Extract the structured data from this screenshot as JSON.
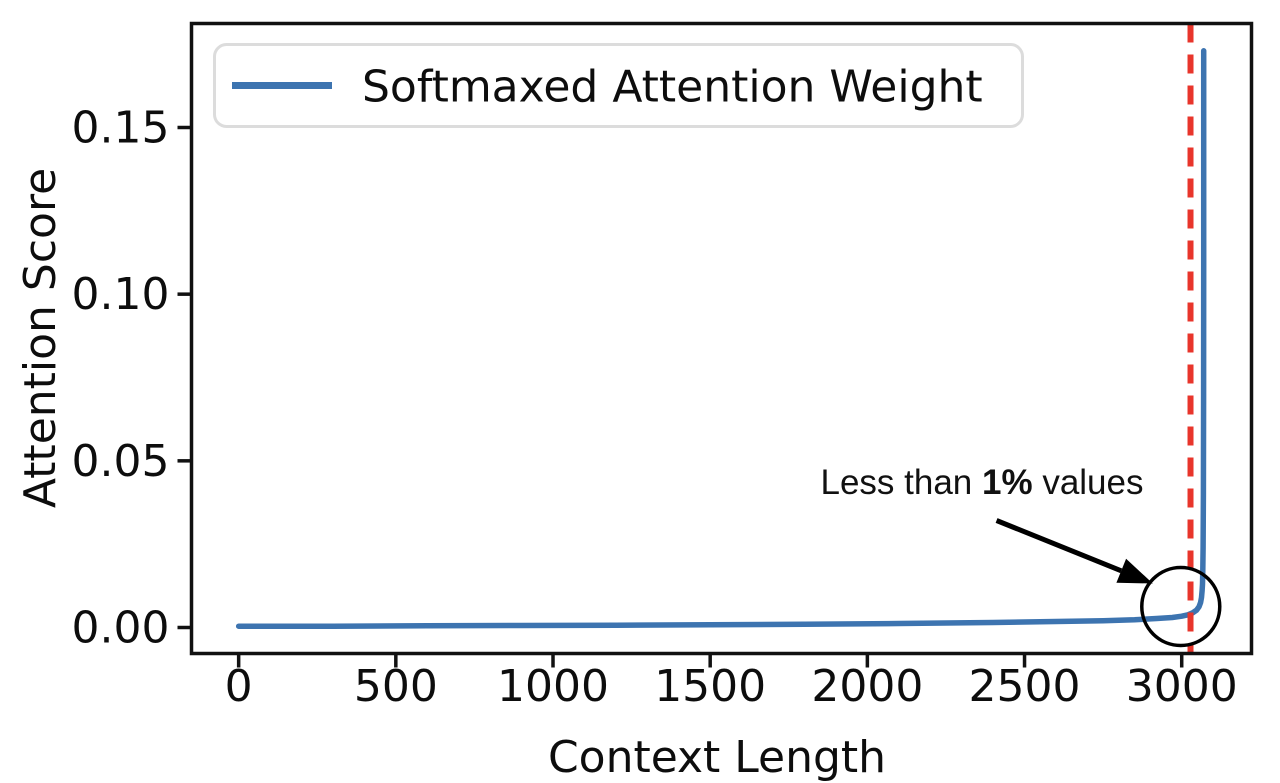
{
  "figure": {
    "background": "#ffffff"
  },
  "colors": {
    "line_blue": "#3d74b0",
    "vline_red": "#e8352b",
    "spine": "#111111",
    "legend_border": "#dcdcdc",
    "annotation_black": "#000000"
  },
  "chart_data": {
    "type": "line",
    "title": "",
    "xlabel": "Context Length",
    "ylabel": "Attention Score",
    "xlim": [
      -150,
      3222
    ],
    "ylim": [
      -0.0078,
      0.1812
    ],
    "grid": false,
    "x_ticks": [
      {
        "value": 0,
        "label": "0"
      },
      {
        "value": 500,
        "label": "500"
      },
      {
        "value": 1000,
        "label": "1000"
      },
      {
        "value": 1500,
        "label": "1500"
      },
      {
        "value": 2000,
        "label": "2000"
      },
      {
        "value": 2500,
        "label": "2500"
      },
      {
        "value": 3000,
        "label": "3000"
      }
    ],
    "y_ticks": [
      {
        "value": 0.0,
        "label": "0.00"
      },
      {
        "value": 0.05,
        "label": "0.05"
      },
      {
        "value": 0.1,
        "label": "0.10"
      },
      {
        "value": 0.15,
        "label": "0.15"
      }
    ],
    "legend": {
      "position": "upper left",
      "entries": [
        {
          "label": "Softmaxed Attention Weight",
          "color": "#3d74b0"
        }
      ]
    },
    "series": [
      {
        "name": "Softmaxed Attention Weight",
        "color": "#3d74b0",
        "points": [
          [
            0,
            0.0004
          ],
          [
            300,
            0.0004
          ],
          [
            600,
            0.0005
          ],
          [
            900,
            0.0006
          ],
          [
            1200,
            0.0007
          ],
          [
            1500,
            0.0008
          ],
          [
            1800,
            0.001
          ],
          [
            2100,
            0.0012
          ],
          [
            2400,
            0.0015
          ],
          [
            2600,
            0.0018
          ],
          [
            2750,
            0.002
          ],
          [
            2850,
            0.0023
          ],
          [
            2920,
            0.0027
          ],
          [
            2970,
            0.003
          ],
          [
            3000,
            0.0034
          ],
          [
            3020,
            0.0038
          ],
          [
            3035,
            0.0044
          ],
          [
            3047,
            0.0052
          ],
          [
            3055,
            0.0062
          ],
          [
            3060,
            0.0075
          ],
          [
            3063,
            0.009
          ],
          [
            3065,
            0.011
          ],
          [
            3066,
            0.013
          ],
          [
            3067,
            0.017
          ],
          [
            3068,
            0.024
          ],
          [
            3069,
            0.04
          ],
          [
            3069.5,
            0.07
          ],
          [
            3070,
            0.11
          ],
          [
            3070,
            0.173
          ]
        ]
      }
    ],
    "vline": {
      "x": 3028,
      "color": "#e8352b",
      "style": "dashed",
      "width": 6,
      "dash": [
        19,
        12
      ]
    },
    "annotation": {
      "text_prefix": "Less than ",
      "text_bold": "1%",
      "text_suffix": " values",
      "arrow": {
        "x1": 2411,
        "y1": 0.0321,
        "x2": 2908,
        "y2": 0.0132
      },
      "circle": {
        "cx": 2997,
        "cy": 0.0063,
        "rx": 124,
        "ry": 0.0117
      }
    }
  }
}
